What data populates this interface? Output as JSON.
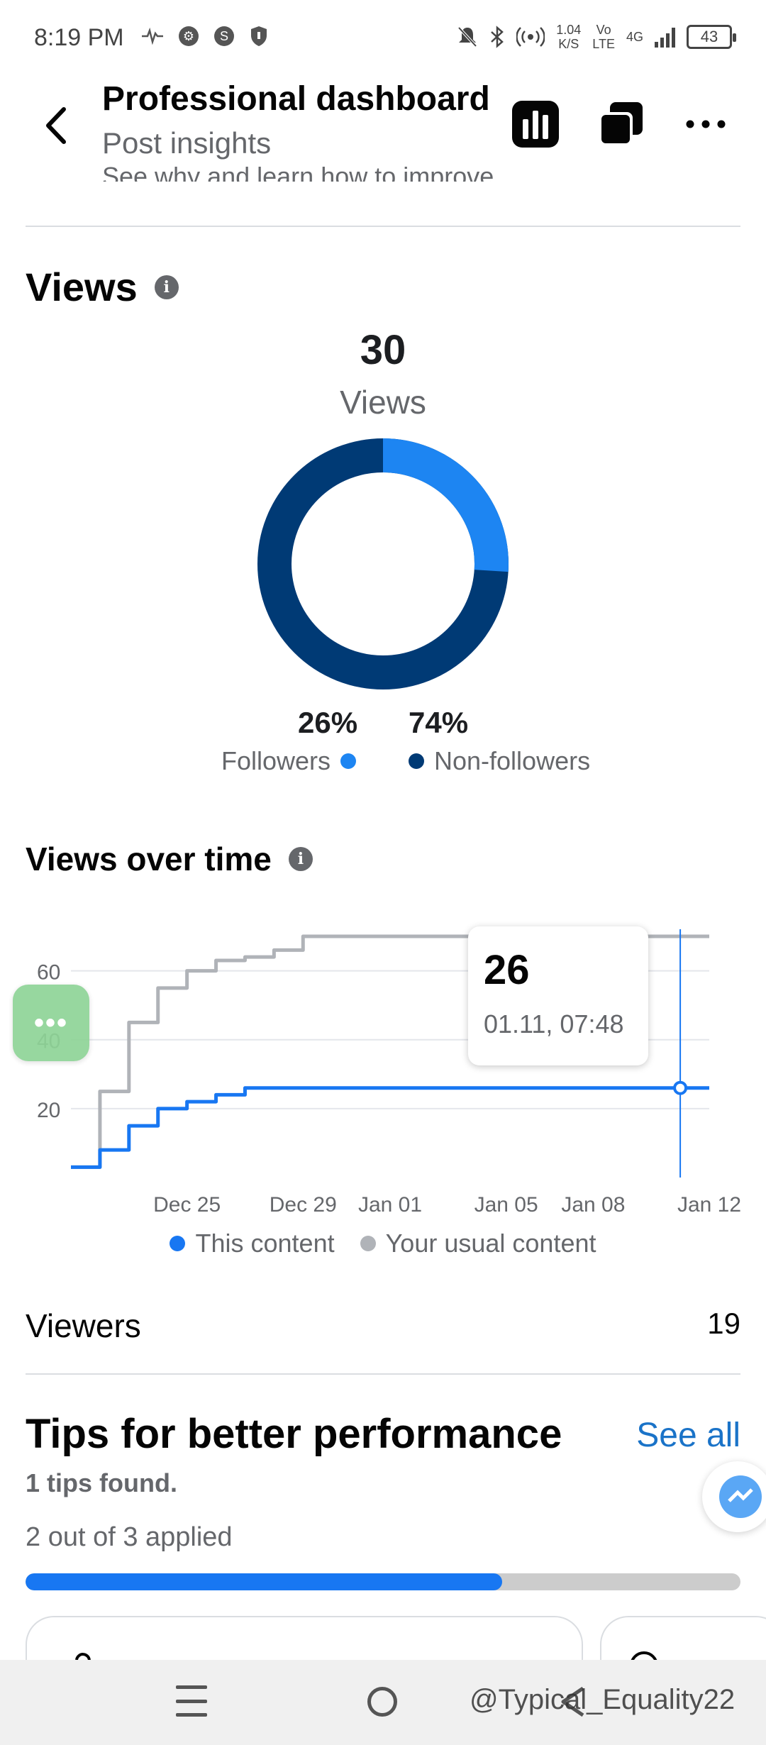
{
  "status_bar": {
    "time": "8:19 PM",
    "speed_value": "1.04",
    "speed_unit": "K/S",
    "volte": "Vo",
    "lte": "LTE",
    "network": "4G",
    "battery": "43"
  },
  "header": {
    "title": "Professional dashboard",
    "subtitle": "Post insights",
    "scrolled_text": "See why and learn how to improve"
  },
  "views": {
    "title": "Views",
    "total": "30",
    "total_label": "Views",
    "followers_pct": "26%",
    "followers_label": "Followers",
    "nonfollowers_pct": "74%",
    "nonfollowers_label": "Non-followers",
    "colors": {
      "followers": "#1d85f2",
      "nonfollowers": "#003a75"
    }
  },
  "views_over_time": {
    "title": "Views over time",
    "tooltip_value": "26",
    "tooltip_time": "01.11, 07:48",
    "legend_this": "This content",
    "legend_usual": "Your usual content"
  },
  "chart_data": {
    "type": "line",
    "title": "Views over time",
    "x_ticks": [
      "Dec 25",
      "Dec 29",
      "Jan 01",
      "Jan 05",
      "Jan 08",
      "Jan 12"
    ],
    "y_ticks": [
      "20",
      "40",
      "60"
    ],
    "ylim": [
      0,
      70
    ],
    "grid": true,
    "legend_position": "bottom",
    "series": [
      {
        "name": "This content",
        "color": "#1877f2",
        "x": [
          "Dec 21",
          "Dec 22",
          "Dec 23",
          "Dec 24",
          "Dec 25",
          "Dec 26",
          "Dec 27",
          "Jan 12"
        ],
        "values": [
          3,
          8,
          15,
          20,
          22,
          24,
          26,
          26
        ]
      },
      {
        "name": "Your usual content",
        "color": "#b0b3b8",
        "x": [
          "Dec 21",
          "Dec 22",
          "Dec 23",
          "Dec 24",
          "Dec 25",
          "Dec 26",
          "Dec 27",
          "Dec 28",
          "Dec 29",
          "Jan 12"
        ],
        "values": [
          3,
          25,
          45,
          55,
          60,
          63,
          64,
          66,
          70,
          70
        ]
      }
    ],
    "highlight": {
      "x": "Jan 11",
      "value": 26
    }
  },
  "viewers": {
    "label": "Viewers",
    "value": "19"
  },
  "tips": {
    "title": "Tips for better performance",
    "see_all": "See all",
    "found": "1 tips found.",
    "applied": "2 out of 3 applied",
    "progress_fraction": 0.667
  },
  "floating_button": {
    "label": "•••"
  },
  "watermark": "@Typical_Equality22"
}
